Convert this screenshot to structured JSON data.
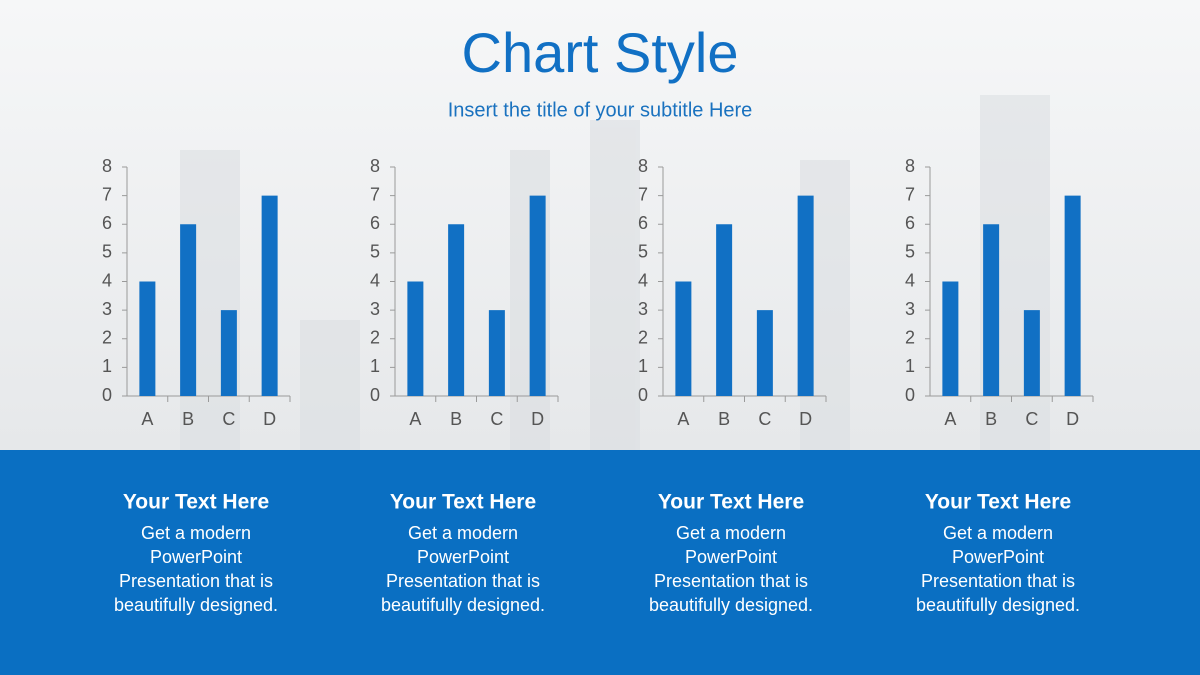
{
  "header": {
    "title": "Chart Style",
    "subtitle": "Insert the title of your subtitle Here"
  },
  "chart_data": [
    {
      "type": "bar",
      "categories": [
        "A",
        "B",
        "C",
        "D"
      ],
      "values": [
        4,
        6,
        3,
        7
      ],
      "color": "#1170c4",
      "ylim": [
        0,
        8
      ],
      "yticks": [
        0,
        1,
        2,
        3,
        4,
        5,
        6,
        7,
        8
      ],
      "grid": false
    },
    {
      "type": "bar",
      "categories": [
        "A",
        "B",
        "C",
        "D"
      ],
      "values": [
        4,
        6,
        3,
        7
      ],
      "color": "#1170c4",
      "ylim": [
        0,
        8
      ],
      "yticks": [
        0,
        1,
        2,
        3,
        4,
        5,
        6,
        7,
        8
      ],
      "grid": false
    },
    {
      "type": "bar",
      "categories": [
        "A",
        "B",
        "C",
        "D"
      ],
      "values": [
        4,
        6,
        3,
        7
      ],
      "color": "#1170c4",
      "ylim": [
        0,
        8
      ],
      "yticks": [
        0,
        1,
        2,
        3,
        4,
        5,
        6,
        7,
        8
      ],
      "grid": false
    },
    {
      "type": "bar",
      "categories": [
        "A",
        "B",
        "C",
        "D"
      ],
      "values": [
        4,
        6,
        3,
        7
      ],
      "color": "#1170c4",
      "ylim": [
        0,
        8
      ],
      "yticks": [
        0,
        1,
        2,
        3,
        4,
        5,
        6,
        7,
        8
      ],
      "grid": false
    }
  ],
  "captions": [
    {
      "title": "Your Text Here",
      "lines": [
        "Get a modern",
        "PowerPoint",
        "Presentation that is",
        "beautifully designed."
      ]
    },
    {
      "title": "Your Text Here",
      "lines": [
        "Get a modern",
        "PowerPoint",
        "Presentation that is",
        "beautifully designed."
      ]
    },
    {
      "title": "Your Text Here",
      "lines": [
        "Get a modern",
        "PowerPoint",
        "Presentation that is",
        "beautifully designed."
      ]
    },
    {
      "title": "Your Text Here",
      "lines": [
        "Get a modern",
        "PowerPoint",
        "Presentation that is",
        "beautifully designed."
      ]
    }
  ]
}
